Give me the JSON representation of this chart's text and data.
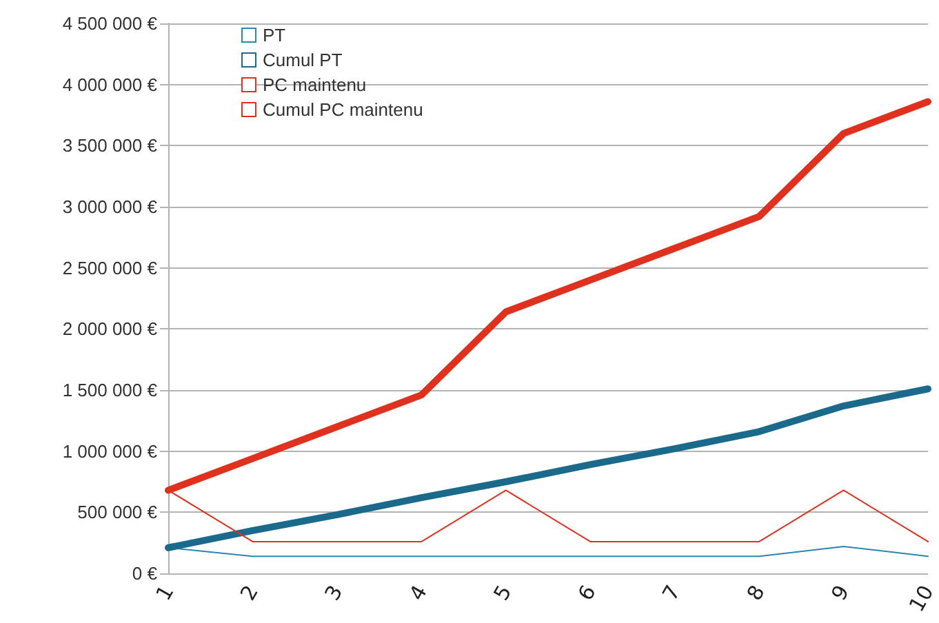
{
  "chart_data": {
    "type": "line",
    "categories": [
      "1",
      "2",
      "3",
      "4",
      "5",
      "6",
      "7",
      "8",
      "9",
      "10"
    ],
    "series": [
      {
        "name": "PT",
        "color": "#2a86b0",
        "values": [
          210000,
          140000,
          140000,
          140000,
          140000,
          140000,
          140000,
          140000,
          220000,
          140000
        ]
      },
      {
        "name": "Cumul PT",
        "color": "#1b6a8c",
        "values": [
          210000,
          350000,
          480000,
          620000,
          750000,
          890000,
          1020000,
          1160000,
          1370000,
          1510000
        ]
      },
      {
        "name": "PC maintenu",
        "color": "#e0301e",
        "values": [
          680000,
          260000,
          260000,
          260000,
          680000,
          260000,
          260000,
          260000,
          680000,
          260000
        ]
      },
      {
        "name": "Cumul PC maintenu",
        "color": "#e0301e",
        "values": [
          680000,
          940000,
          1200000,
          1460000,
          2140000,
          2400000,
          2660000,
          2920000,
          3600000,
          3860000
        ]
      }
    ],
    "ylim": [
      0,
      4500000
    ],
    "yticks": [
      {
        "value": 0,
        "label": "0 €"
      },
      {
        "value": 500000,
        "label": "500 000 €"
      },
      {
        "value": 1000000,
        "label": "1 000 000 €"
      },
      {
        "value": 1500000,
        "label": "1 500 000 €"
      },
      {
        "value": 2000000,
        "label": "2 000 000 €"
      },
      {
        "value": 2500000,
        "label": "2 500 000 €"
      },
      {
        "value": 3000000,
        "label": "3 000 000 €"
      },
      {
        "value": 3500000,
        "label": "3 500 000 €"
      },
      {
        "value": 4000000,
        "label": "4 000 000 €"
      },
      {
        "value": 4500000,
        "label": "4 500 000 €"
      }
    ],
    "grid": "y",
    "legend": "top left",
    "marker": "none",
    "line_style": "solid"
  }
}
